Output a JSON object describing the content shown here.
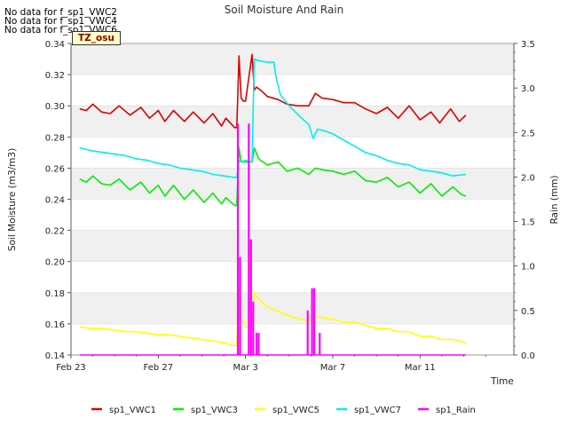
{
  "no_data_notes": [
    "No data for f_sp1_VWC2",
    "No data for f_sp1_VWC4",
    "No data for f_sp1_VWC6"
  ],
  "site_label": "TZ_osu",
  "chart_data": {
    "type": "line",
    "title": "Soil Moisture And Rain",
    "xlabel": "Time",
    "ylabel": "Soil Moisture (m3/m3)",
    "y2label": "Rain (mm)",
    "x_unit": "days from Feb 23",
    "xlim": [
      0,
      20.3
    ],
    "ylim": [
      0.14,
      0.34
    ],
    "y2lim": [
      0.0,
      3.5
    ],
    "xticks": [
      {
        "x": 0,
        "label": "Feb 23"
      },
      {
        "x": 4,
        "label": "Feb 27"
      },
      {
        "x": 8,
        "label": "Mar 3"
      },
      {
        "x": 12,
        "label": "Mar 7"
      },
      {
        "x": 16,
        "label": "Mar 11"
      }
    ],
    "yticks": [
      "0.14",
      "0.16",
      "0.18",
      "0.20",
      "0.22",
      "0.24",
      "0.26",
      "0.28",
      "0.30",
      "0.32",
      "0.34"
    ],
    "y2ticks": [
      "0.0",
      "0.5",
      "1.0",
      "1.5",
      "2.0",
      "2.5",
      "3.0",
      "3.5"
    ],
    "grid": true,
    "legend_placement": "bottom",
    "colors": {
      "sp1_VWC1": "#dd0000",
      "sp1_VWC3": "#00ee00",
      "sp1_VWC5": "#ffff00",
      "sp1_VWC7": "#00eeee",
      "sp1_Rain": "#ff00ff"
    },
    "series": [
      {
        "name": "sp1_VWC1",
        "axis": "left",
        "x": [
          0.4,
          0.7,
          1.0,
          1.4,
          1.8,
          2.2,
          2.7,
          3.2,
          3.6,
          4.0,
          4.3,
          4.7,
          5.2,
          5.6,
          6.1,
          6.5,
          6.9,
          7.1,
          7.5,
          7.6,
          7.7,
          7.8,
          7.9,
          8.0,
          8.3,
          8.4,
          8.5,
          8.7,
          9.0,
          9.5,
          9.9,
          10.4,
          10.9,
          11.2,
          11.5,
          12.0,
          12.5,
          13.0,
          13.5,
          14.0,
          14.5,
          15.0,
          15.5,
          16.0,
          16.5,
          16.9,
          17.4,
          17.8,
          18.1
        ],
        "y": [
          0.298,
          0.297,
          0.301,
          0.296,
          0.295,
          0.3,
          0.294,
          0.299,
          0.292,
          0.297,
          0.29,
          0.297,
          0.29,
          0.296,
          0.289,
          0.295,
          0.287,
          0.292,
          0.286,
          0.286,
          0.332,
          0.305,
          0.303,
          0.303,
          0.333,
          0.31,
          0.312,
          0.31,
          0.306,
          0.304,
          0.301,
          0.3,
          0.3,
          0.308,
          0.305,
          0.304,
          0.302,
          0.302,
          0.298,
          0.295,
          0.299,
          0.292,
          0.3,
          0.291,
          0.296,
          0.289,
          0.298,
          0.29,
          0.294
        ]
      },
      {
        "name": "sp1_VWC3",
        "axis": "left",
        "x": [
          0.4,
          0.7,
          1.0,
          1.4,
          1.8,
          2.2,
          2.7,
          3.2,
          3.6,
          4.0,
          4.3,
          4.7,
          5.2,
          5.6,
          6.1,
          6.5,
          6.9,
          7.1,
          7.5,
          7.6,
          7.7,
          7.8,
          8.0,
          8.3,
          8.4,
          8.6,
          9.0,
          9.5,
          9.9,
          10.4,
          10.9,
          11.2,
          11.5,
          12.0,
          12.5,
          13.0,
          13.5,
          14.0,
          14.5,
          15.0,
          15.5,
          16.0,
          16.5,
          17.0,
          17.5,
          17.9,
          18.1
        ],
        "y": [
          0.253,
          0.251,
          0.255,
          0.25,
          0.249,
          0.253,
          0.246,
          0.251,
          0.244,
          0.249,
          0.242,
          0.249,
          0.24,
          0.246,
          0.238,
          0.244,
          0.237,
          0.241,
          0.236,
          0.236,
          0.273,
          0.264,
          0.264,
          0.264,
          0.273,
          0.266,
          0.262,
          0.264,
          0.258,
          0.26,
          0.256,
          0.26,
          0.259,
          0.258,
          0.256,
          0.258,
          0.252,
          0.251,
          0.254,
          0.248,
          0.251,
          0.244,
          0.25,
          0.242,
          0.248,
          0.243,
          0.242
        ]
      },
      {
        "name": "sp1_VWC5",
        "axis": "left",
        "x": [
          0.4,
          1.0,
          1.5,
          2.0,
          2.5,
          3.0,
          3.5,
          4.0,
          4.5,
          5.0,
          5.5,
          6.0,
          6.5,
          7.0,
          7.5,
          7.6,
          7.7,
          7.8,
          8.0,
          8.3,
          8.4,
          8.6,
          9.0,
          9.5,
          10.0,
          10.5,
          11.0,
          11.2,
          11.5,
          12.0,
          12.5,
          13.0,
          13.5,
          14.0,
          14.5,
          15.0,
          15.5,
          16.0,
          16.5,
          17.0,
          17.5,
          18.1
        ],
        "y": [
          0.158,
          0.157,
          0.157,
          0.156,
          0.155,
          0.155,
          0.154,
          0.153,
          0.153,
          0.152,
          0.151,
          0.15,
          0.149,
          0.148,
          0.146,
          0.146,
          0.183,
          0.164,
          0.158,
          0.158,
          0.18,
          0.176,
          0.171,
          0.168,
          0.165,
          0.163,
          0.162,
          0.165,
          0.164,
          0.163,
          0.161,
          0.161,
          0.159,
          0.157,
          0.157,
          0.155,
          0.155,
          0.152,
          0.152,
          0.15,
          0.15,
          0.148
        ]
      },
      {
        "name": "sp1_VWC7",
        "axis": "left",
        "x": [
          0.4,
          1.0,
          1.5,
          2.0,
          2.5,
          3.0,
          3.5,
          4.0,
          4.5,
          5.0,
          5.5,
          6.0,
          6.5,
          7.0,
          7.5,
          7.6,
          7.7,
          7.8,
          8.0,
          8.3,
          8.4,
          8.6,
          9.0,
          9.3,
          9.4,
          9.6,
          10.0,
          10.5,
          10.9,
          11.1,
          11.3,
          11.6,
          12.0,
          12.5,
          13.0,
          13.5,
          14.0,
          14.5,
          15.0,
          15.5,
          16.0,
          16.5,
          17.0,
          17.5,
          18.1
        ],
        "y": [
          0.273,
          0.271,
          0.27,
          0.269,
          0.268,
          0.266,
          0.265,
          0.263,
          0.262,
          0.26,
          0.259,
          0.258,
          0.256,
          0.255,
          0.254,
          0.254,
          0.265,
          0.264,
          0.265,
          0.264,
          0.33,
          0.329,
          0.328,
          0.328,
          0.318,
          0.307,
          0.3,
          0.293,
          0.288,
          0.279,
          0.285,
          0.284,
          0.282,
          0.278,
          0.274,
          0.27,
          0.268,
          0.265,
          0.263,
          0.262,
          0.259,
          0.258,
          0.257,
          0.255,
          0.256
        ]
      },
      {
        "name": "sp1_Rain",
        "axis": "right",
        "kind": "impulse",
        "x": [
          7.65,
          7.75,
          8.15,
          8.25,
          8.35,
          8.5,
          8.6,
          10.85,
          11.05,
          11.15,
          11.4
        ],
        "y": [
          2.6,
          1.1,
          2.6,
          1.3,
          0.6,
          0.25,
          0.25,
          0.5,
          0.75,
          0.75,
          0.25
        ]
      }
    ]
  }
}
